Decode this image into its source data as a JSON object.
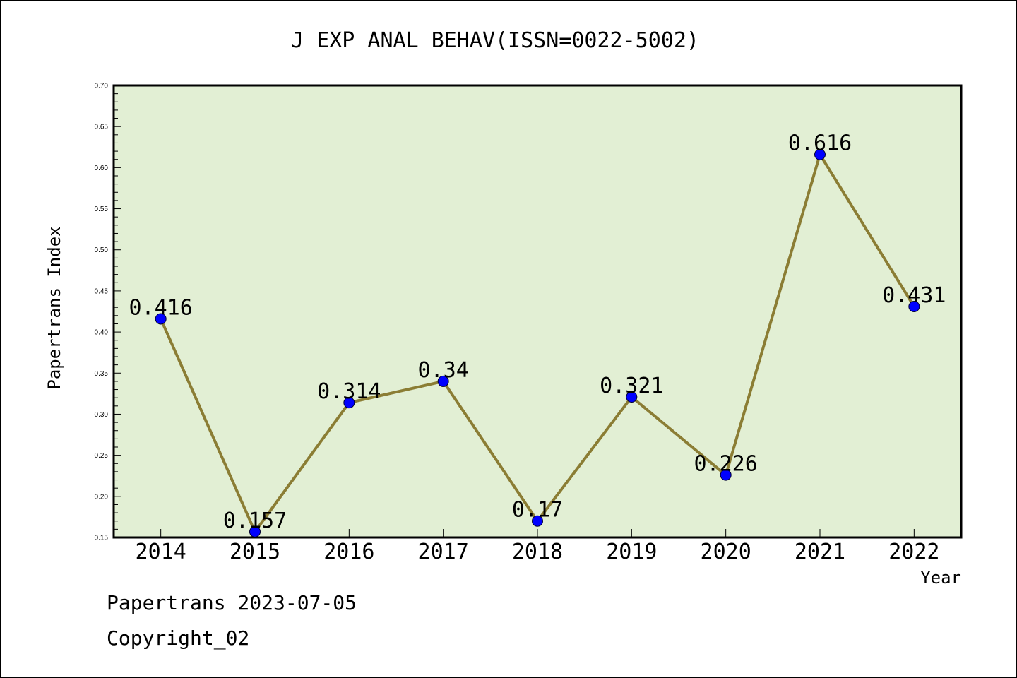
{
  "chart_data": {
    "type": "line",
    "title": "J EXP ANAL BEHAV(ISSN=0022-5002)",
    "xlabel": "Year",
    "ylabel": "Papertrans Index",
    "x": [
      "2014",
      "2015",
      "2016",
      "2017",
      "2018",
      "2019",
      "2020",
      "2021",
      "2022"
    ],
    "series": [
      {
        "values": [
          0.416,
          0.157,
          0.314,
          0.34,
          0.17,
          0.321,
          0.226,
          0.616,
          0.431
        ],
        "labels": [
          "0.416",
          "0.157",
          "0.314",
          "0.34",
          "0.17",
          "0.321",
          "0.226",
          "0.616",
          "0.431"
        ]
      }
    ],
    "ylim": [
      0.15,
      0.7
    ],
    "yticks": [
      "0.15",
      "0.20",
      "0.25",
      "0.30",
      "0.35",
      "0.40",
      "0.45",
      "0.50",
      "0.55",
      "0.60",
      "0.65",
      "0.70"
    ],
    "grid": false,
    "colors": {
      "plot_background": "#e2efd4",
      "line": "#8b7d34",
      "marker": "#0000ff"
    }
  },
  "footer": {
    "stamp": "Papertrans 2023-07-05",
    "copyright": "Copyright_02"
  }
}
